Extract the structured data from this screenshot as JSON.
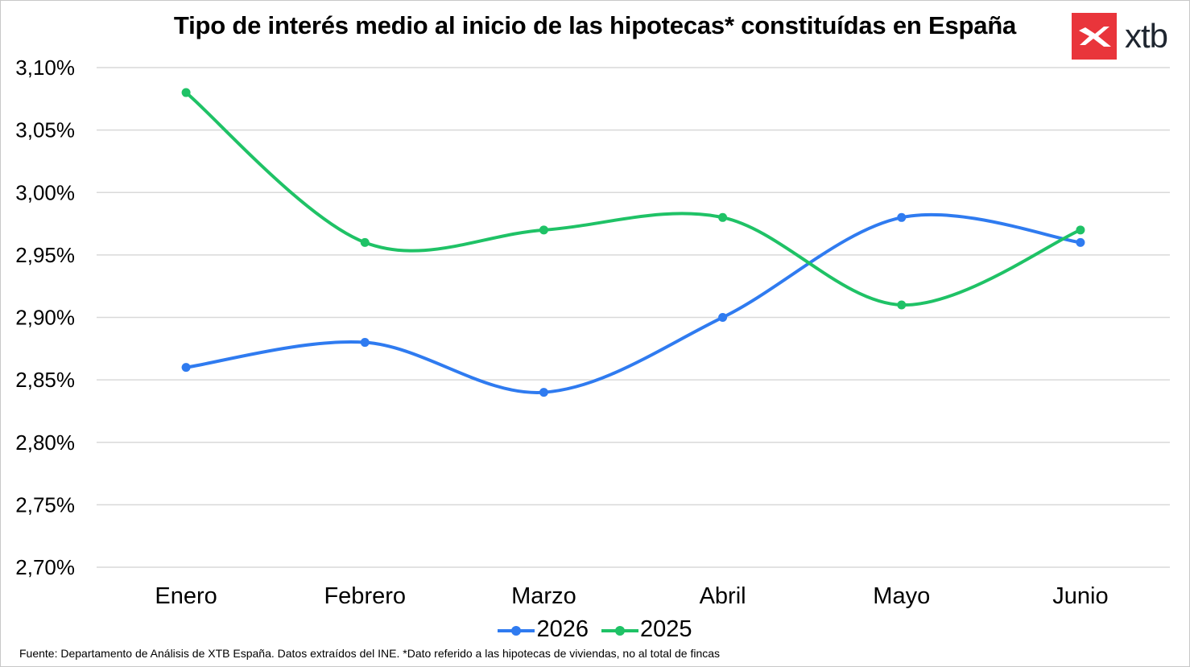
{
  "title": "Tipo de interés medio al inicio de las hipotecas* constituídas en España",
  "logo": {
    "text": "xtb",
    "color": "#e9353b"
  },
  "source": "Fuente: Departamento de Análisis de XTB España. Datos extraídos del INE. *Dato referido a las hipotecas de viviendas, no al total de fincas",
  "chart_data": {
    "type": "line",
    "title": "Tipo de interés medio al inicio de las hipotecas* constituídas en España",
    "xlabel": "",
    "ylabel": "",
    "categories": [
      "Enero",
      "Febrero",
      "Marzo",
      "Abril",
      "Mayo",
      "Junio"
    ],
    "ylim": [
      2.7,
      3.1
    ],
    "yticks": [
      2.7,
      2.75,
      2.8,
      2.85,
      2.9,
      2.95,
      3.0,
      3.05,
      3.1
    ],
    "ytick_labels": [
      "2,70%",
      "2,75%",
      "2,80%",
      "2,85%",
      "2,90%",
      "2,95%",
      "3,00%",
      "3,05%",
      "3,10%"
    ],
    "grid": true,
    "legend_position": "bottom",
    "smooth": true,
    "series": [
      {
        "name": "2026",
        "color": "#2f7bf0",
        "values": [
          2.86,
          2.88,
          2.84,
          2.9,
          2.98,
          2.96
        ]
      },
      {
        "name": "2025",
        "color": "#1fc266",
        "values": [
          3.08,
          2.96,
          2.97,
          2.98,
          2.91,
          2.97
        ]
      }
    ]
  }
}
